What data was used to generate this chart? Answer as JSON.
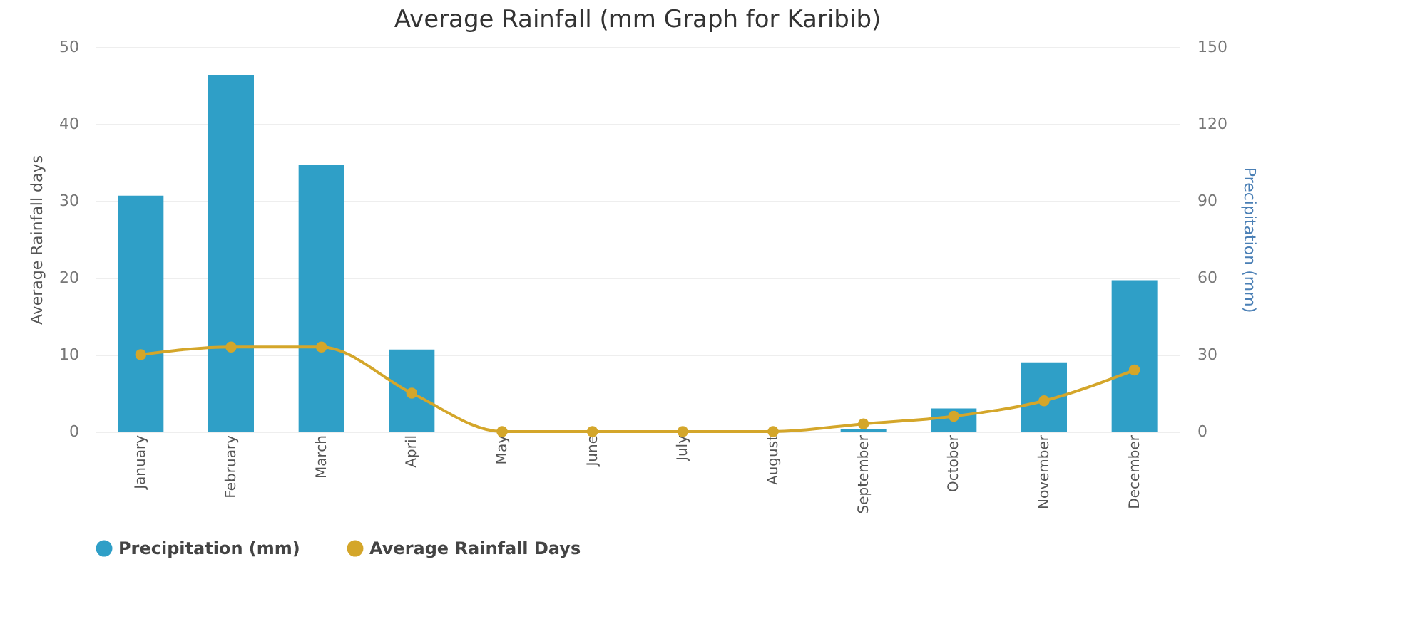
{
  "chart_data": {
    "type": "bar",
    "title": "Average Rainfall (mm Graph for Karibib)",
    "categories": [
      "January",
      "February",
      "March",
      "April",
      "May",
      "June",
      "July",
      "August",
      "September",
      "October",
      "November",
      "December"
    ],
    "series": [
      {
        "name": "Precipitation (mm)",
        "axis": "y2",
        "color": "#2f9fc7",
        "values": [
          92,
          139,
          104,
          32,
          0,
          0,
          0,
          0,
          1,
          9,
          27,
          59
        ]
      },
      {
        "name": "Average Rainfall Days",
        "type": "line",
        "color": "#d4a62a",
        "values": [
          10,
          11,
          11,
          5,
          0,
          0,
          0,
          0,
          1,
          2,
          4,
          8
        ]
      }
    ],
    "ylabel": "Average Rainfall days",
    "y2label": "Precipitation (mm)",
    "ylim": [
      0,
      50
    ],
    "yticks": [
      0,
      10,
      20,
      30,
      40,
      50
    ],
    "y2lim": [
      0,
      150
    ],
    "y2ticks": [
      0,
      30,
      60,
      90,
      120,
      150
    ],
    "grid": "y",
    "legend": "bottom",
    "marker": "circle",
    "line_style": "solid"
  }
}
